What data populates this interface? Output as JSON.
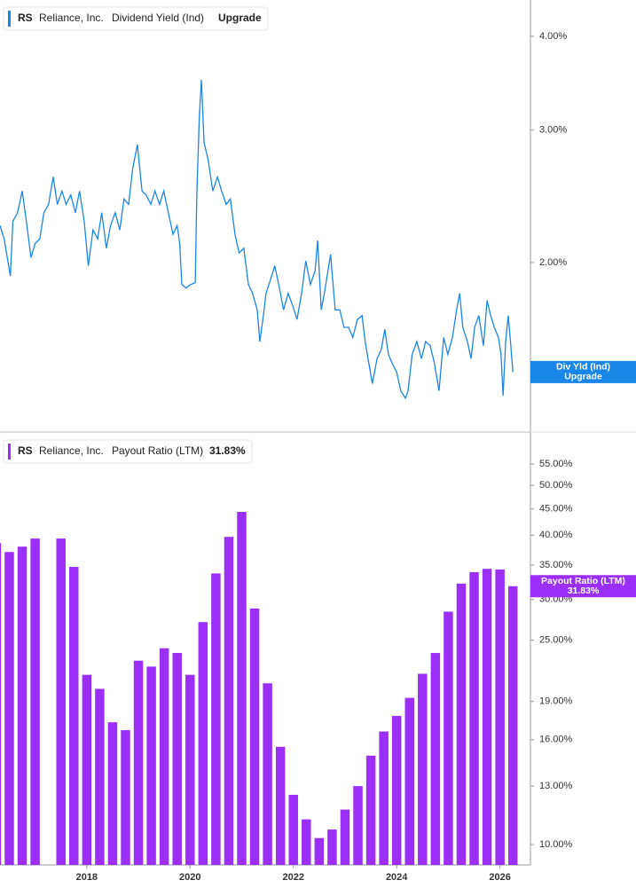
{
  "chart_data": [
    {
      "type": "line",
      "ticker": "RS",
      "company": "Reliance, Inc.",
      "status": "Upgrade",
      "tag_label": "Div Yld (Ind)",
      "log_scale": true,
      "xlim": [
        2016.32,
        2026.59
      ],
      "ylim": [
        1.19,
        4.47
      ],
      "yticks": [
        {
          "value": 2,
          "label": "2.00%"
        },
        {
          "value": 3,
          "label": "3.00%"
        },
        {
          "value": 4,
          "label": "4.00%"
        }
      ],
      "series": [
        {
          "name": "Dividend Yield (Ind)",
          "color": "#1a86e8",
          "x": [
            2016.32,
            2016.4,
            2016.52,
            2016.57,
            2016.66,
            2016.75,
            2016.83,
            2016.92,
            2017.0,
            2017.09,
            2017.17,
            2017.26,
            2017.35,
            2017.43,
            2017.52,
            2017.6,
            2017.69,
            2017.78,
            2017.86,
            2017.95,
            2018.03,
            2018.12,
            2018.21,
            2018.29,
            2018.38,
            2018.46,
            2018.55,
            2018.64,
            2018.72,
            2018.81,
            2018.89,
            2018.98,
            2019.07,
            2019.15,
            2019.24,
            2019.32,
            2019.41,
            2019.49,
            2019.58,
            2019.67,
            2019.75,
            2019.8,
            2019.84,
            2019.92,
            2020.01,
            2020.1,
            2020.13,
            2020.18,
            2020.22,
            2020.27,
            2020.35,
            2020.44,
            2020.53,
            2020.61,
            2020.7,
            2020.78,
            2020.87,
            2020.95,
            2021.04,
            2021.13,
            2021.21,
            2021.3,
            2021.35,
            2021.42,
            2021.47,
            2021.56,
            2021.64,
            2021.73,
            2021.81,
            2021.9,
            2021.99,
            2022.07,
            2022.16,
            2022.24,
            2022.33,
            2022.42,
            2022.47,
            2022.54,
            2022.6,
            2022.67,
            2022.72,
            2022.81,
            2022.9,
            2022.98,
            2023.07,
            2023.15,
            2023.24,
            2023.33,
            2023.39,
            2023.46,
            2023.53,
            2023.62,
            2023.7,
            2023.77,
            2023.84,
            2023.91,
            2024.0,
            2024.08,
            2024.17,
            2024.22,
            2024.3,
            2024.39,
            2024.48,
            2024.56,
            2024.65,
            2024.73,
            2024.82,
            2024.91,
            2024.99,
            2025.08,
            2025.16,
            2025.22,
            2025.28,
            2025.37,
            2025.44,
            2025.51,
            2025.59,
            2025.68,
            2025.75,
            2025.82,
            2025.89,
            2025.97,
            2026.02,
            2026.06,
            2026.11,
            2026.16,
            2026.21,
            2026.25
          ],
          "values": [
            2.24,
            2.15,
            1.92,
            2.27,
            2.33,
            2.49,
            2.27,
            2.03,
            2.12,
            2.15,
            2.33,
            2.39,
            2.6,
            2.39,
            2.49,
            2.39,
            2.46,
            2.33,
            2.49,
            2.27,
            1.98,
            2.21,
            2.15,
            2.33,
            2.09,
            2.24,
            2.33,
            2.21,
            2.43,
            2.39,
            2.67,
            2.87,
            2.49,
            2.46,
            2.39,
            2.49,
            2.39,
            2.49,
            2.33,
            2.18,
            2.24,
            2.12,
            1.87,
            1.85,
            1.87,
            1.88,
            2.46,
            3.14,
            3.5,
            2.89,
            2.74,
            2.49,
            2.6,
            2.49,
            2.39,
            2.43,
            2.18,
            2.06,
            2.09,
            1.87,
            1.82,
            1.73,
            1.57,
            1.7,
            1.82,
            1.9,
            1.98,
            1.85,
            1.73,
            1.82,
            1.75,
            1.68,
            1.82,
            2.01,
            1.87,
            1.95,
            2.14,
            1.73,
            1.82,
            1.95,
            2.05,
            1.73,
            1.73,
            1.64,
            1.64,
            1.59,
            1.68,
            1.7,
            1.57,
            1.47,
            1.38,
            1.49,
            1.53,
            1.63,
            1.51,
            1.47,
            1.43,
            1.35,
            1.32,
            1.35,
            1.51,
            1.57,
            1.49,
            1.57,
            1.55,
            1.47,
            1.35,
            1.59,
            1.51,
            1.59,
            1.73,
            1.82,
            1.64,
            1.57,
            1.49,
            1.64,
            1.7,
            1.55,
            1.78,
            1.7,
            1.64,
            1.59,
            1.51,
            1.33,
            1.57,
            1.7,
            1.55,
            1.43
          ]
        }
      ]
    },
    {
      "type": "bar",
      "ticker": "RS",
      "company": "Reliance, Inc.",
      "log_scale": true,
      "xlim": [
        2016.32,
        2026.59
      ],
      "ylim": [
        9.13,
        63.5
      ],
      "xticks": [
        2018,
        2020,
        2022,
        2024,
        2026
      ],
      "yticks": [
        {
          "value": 10,
          "label": "10.00%"
        },
        {
          "value": 13,
          "label": "13.00%"
        },
        {
          "value": 16,
          "label": "16.00%"
        },
        {
          "value": 19,
          "label": "19.00%"
        },
        {
          "value": 25,
          "label": "25.00%"
        },
        {
          "value": 30,
          "label": "30.00%"
        },
        {
          "value": 35,
          "label": "35.00%"
        },
        {
          "value": 40,
          "label": "40.00%"
        },
        {
          "value": 45,
          "label": "45.00%"
        },
        {
          "value": 50,
          "label": "50.00%"
        },
        {
          "value": 55,
          "label": "55.00%"
        }
      ],
      "series": [
        {
          "name": "Payout Ratio (LTM)",
          "color": "#9b2ff7",
          "x": [
            2016.25,
            2016.5,
            2016.75,
            2017.0,
            2017.25,
            2017.5,
            2017.75,
            2018.0,
            2018.25,
            2018.5,
            2018.75,
            2019.0,
            2019.25,
            2019.5,
            2019.75,
            2020.0,
            2020.25,
            2020.5,
            2020.75,
            2021.0,
            2021.25,
            2021.5,
            2021.75,
            2022.0,
            2022.25,
            2022.5,
            2022.75,
            2023.0,
            2023.25,
            2023.5,
            2023.75,
            2024.0,
            2024.25,
            2024.5,
            2024.75,
            2025.0,
            2025.25,
            2025.5,
            2025.75,
            2026.0,
            2026.25
          ],
          "values": [
            38.6,
            37.1,
            38.0,
            39.4,
            null,
            39.4,
            34.7,
            21.4,
            20.1,
            17.3,
            16.7,
            22.8,
            22.2,
            24.1,
            23.6,
            21.4,
            27.1,
            33.7,
            39.7,
            44.4,
            28.8,
            20.6,
            15.5,
            12.5,
            11.2,
            10.3,
            10.7,
            11.7,
            13.0,
            14.9,
            16.6,
            17.8,
            19.3,
            21.5,
            23.6,
            28.4,
            32.2,
            33.9,
            34.4,
            34.3,
            31.83
          ],
          "value_labels": [
            null,
            null,
            null,
            null,
            null,
            null,
            null,
            null,
            null,
            null,
            null,
            null,
            null,
            null,
            null,
            null,
            null,
            null,
            null,
            null,
            null,
            null,
            null,
            null,
            null,
            null,
            null,
            null,
            null,
            null,
            null,
            null,
            null,
            null,
            null,
            null,
            null,
            null,
            null,
            null,
            "31.83%"
          ]
        }
      ]
    }
  ]
}
